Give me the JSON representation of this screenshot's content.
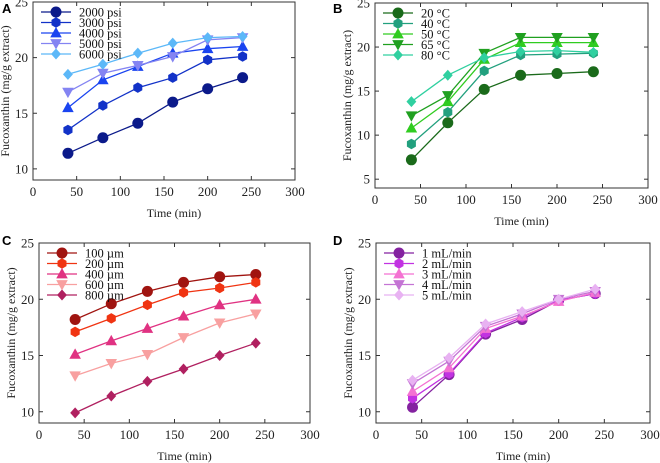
{
  "chart_data": [
    {
      "type": "line",
      "panel": "A",
      "xlabel": "Time (min)",
      "ylabel": "Fucoxanthin (mg/g extract)",
      "xlim": [
        0,
        300
      ],
      "ylim": [
        9,
        25
      ],
      "xticks": [
        0,
        50,
        100,
        150,
        200,
        250,
        300
      ],
      "yticks": [
        10,
        15,
        20,
        25
      ],
      "legend_position": "top-left",
      "x": [
        40,
        80,
        120,
        160,
        200,
        240
      ],
      "series": [
        {
          "name": "2000 psi",
          "marker": "circle",
          "color": "#0b1a8a",
          "values": [
            11.4,
            12.8,
            14.1,
            16.0,
            17.2,
            18.2
          ]
        },
        {
          "name": "3000 psi",
          "marker": "hexagon",
          "color": "#1232c8",
          "values": [
            13.5,
            15.7,
            17.3,
            18.2,
            19.8,
            20.1
          ]
        },
        {
          "name": "4000 psi",
          "marker": "triangle-up",
          "color": "#1a44f0",
          "values": [
            15.5,
            18.0,
            19.2,
            20.4,
            20.8,
            21.0
          ]
        },
        {
          "name": "5000 psi",
          "marker": "triangle-down",
          "color": "#8484f2",
          "values": [
            16.9,
            18.6,
            19.3,
            20.1,
            21.6,
            21.8
          ]
        },
        {
          "name": "6000 psi",
          "marker": "diamond",
          "color": "#5cb8f8",
          "values": [
            18.5,
            19.4,
            20.4,
            21.3,
            21.8,
            21.9
          ]
        }
      ]
    },
    {
      "type": "line",
      "panel": "B",
      "xlabel": "Time (min)",
      "ylabel": "Fucoxanthin (mg/g extract)",
      "xlim": [
        0,
        300
      ],
      "ylim": [
        4,
        25
      ],
      "xticks": [
        0,
        50,
        100,
        150,
        200,
        250,
        300
      ],
      "yticks": [
        5,
        10,
        15,
        20,
        25
      ],
      "legend_position": "top-left",
      "x": [
        40,
        80,
        120,
        160,
        200,
        240
      ],
      "series": [
        {
          "name": "20 °C",
          "marker": "circle",
          "color": "#1a6a1a",
          "values": [
            7.2,
            11.4,
            15.2,
            16.8,
            17.0,
            17.2
          ]
        },
        {
          "name": "40 °C",
          "marker": "hexagon",
          "color": "#22a07e",
          "values": [
            9.0,
            12.6,
            17.3,
            19.1,
            19.2,
            19.3
          ]
        },
        {
          "name": "50 °C",
          "marker": "triangle-up",
          "color": "#30cc20",
          "values": [
            10.8,
            13.8,
            18.6,
            20.5,
            20.5,
            20.5
          ]
        },
        {
          "name": "65 °C",
          "marker": "triangle-down",
          "color": "#20a020",
          "values": [
            12.2,
            14.5,
            19.3,
            21.1,
            21.1,
            21.1
          ]
        },
        {
          "name": "80 °C",
          "marker": "diamond",
          "color": "#30d0a0",
          "values": [
            13.8,
            16.8,
            18.8,
            19.5,
            19.6,
            19.4
          ]
        }
      ]
    },
    {
      "type": "line",
      "panel": "C",
      "xlabel": "Time (min)",
      "ylabel": "Fucoxanthin (mg/g extract)",
      "xlim": [
        0,
        300
      ],
      "ylim": [
        9,
        25
      ],
      "xticks": [
        0,
        50,
        100,
        150,
        200,
        250,
        300
      ],
      "yticks": [
        10,
        15,
        20,
        25
      ],
      "legend_position": "top-left",
      "x": [
        40,
        80,
        120,
        160,
        200,
        240
      ],
      "series": [
        {
          "name": "100 µm",
          "marker": "circle",
          "color": "#a01410",
          "values": [
            18.2,
            19.6,
            20.7,
            21.5,
            22.0,
            22.2
          ]
        },
        {
          "name": "200 µm",
          "marker": "hexagon",
          "color": "#f03412",
          "values": [
            17.1,
            18.3,
            19.5,
            20.6,
            21.0,
            21.5
          ]
        },
        {
          "name": "400 µm",
          "marker": "triangle-up",
          "color": "#e03282",
          "values": [
            15.1,
            16.3,
            17.4,
            18.5,
            19.5,
            20.0
          ]
        },
        {
          "name": "600 µm",
          "marker": "triangle-down",
          "color": "#f8a0a0",
          "values": [
            13.2,
            14.3,
            15.1,
            16.6,
            17.9,
            18.7
          ]
        },
        {
          "name": "800 µm",
          "marker": "diamond",
          "color": "#b02060",
          "values": [
            9.9,
            11.4,
            12.7,
            13.8,
            15.0,
            16.1
          ]
        }
      ]
    },
    {
      "type": "line",
      "panel": "D",
      "xlabel": "Time (min)",
      "ylabel": "Fucoxanthin (mg/g extract)",
      "xlim": [
        0,
        300
      ],
      "ylim": [
        9,
        25
      ],
      "xticks": [
        0,
        50,
        100,
        150,
        200,
        250,
        300
      ],
      "yticks": [
        10,
        15,
        20,
        25
      ],
      "legend_position": "top-left",
      "x": [
        40,
        80,
        120,
        160,
        200,
        240
      ],
      "series": [
        {
          "name": "1 mL/min",
          "marker": "circle",
          "color": "#8422a0",
          "values": [
            10.4,
            13.3,
            16.9,
            18.2,
            19.9,
            20.5
          ]
        },
        {
          "name": "2 mL/min",
          "marker": "hexagon",
          "color": "#c232e2",
          "values": [
            11.2,
            13.4,
            17.0,
            18.4,
            19.9,
            20.5
          ]
        },
        {
          "name": "3 mL/min",
          "marker": "triangle-up",
          "color": "#f472d2",
          "values": [
            11.8,
            13.9,
            17.4,
            18.5,
            19.8,
            20.6
          ]
        },
        {
          "name": "4 mL/min",
          "marker": "triangle-down",
          "color": "#c474d4",
          "values": [
            12.5,
            14.5,
            17.6,
            18.7,
            20.0,
            20.7
          ]
        },
        {
          "name": "5 mL/min",
          "marker": "diamond",
          "color": "#e8b2f2",
          "values": [
            12.8,
            14.8,
            17.8,
            18.9,
            20.0,
            20.9
          ]
        }
      ]
    }
  ]
}
